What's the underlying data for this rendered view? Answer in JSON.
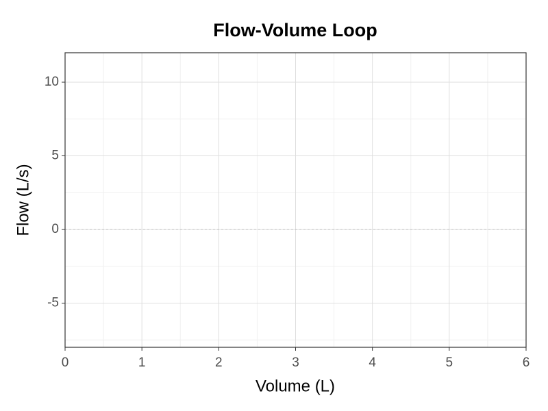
{
  "chart_data": {
    "type": "line",
    "title": "Flow-Volume Loop",
    "x_label": "Volume (L)",
    "y_label": "Flow (L/s)",
    "xlim": [
      0,
      6
    ],
    "xticks": [
      0,
      1,
      2,
      3,
      4,
      5,
      6
    ],
    "ylim": [
      -8,
      12
    ],
    "yticks": [
      -5,
      0,
      5,
      10
    ],
    "hline": 0,
    "grid": true
  }
}
